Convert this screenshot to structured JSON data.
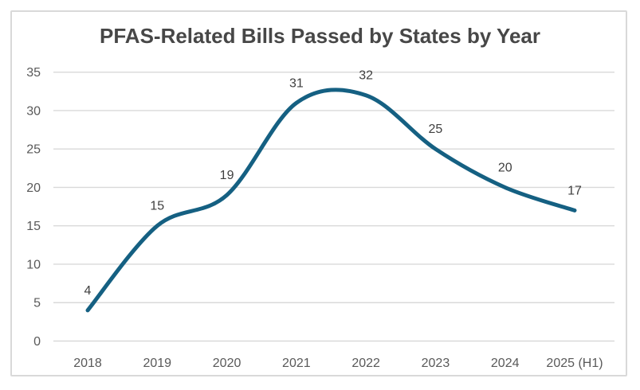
{
  "chart_data": {
    "type": "line",
    "title": "PFAS-Related Bills Passed by States by Year",
    "categories": [
      "2018",
      "2019",
      "2020",
      "2021",
      "2022",
      "2023",
      "2024",
      "2025 (H1)"
    ],
    "values": [
      4,
      15,
      19,
      31,
      32,
      25,
      20,
      17
    ],
    "xlabel": "",
    "ylabel": "",
    "ylim": [
      0,
      35
    ],
    "yticks": [
      0,
      5,
      10,
      15,
      20,
      25,
      30,
      35
    ],
    "grid": true,
    "legend": "none",
    "smoothed_line": true,
    "point_markers": false,
    "data_labels_shown": true,
    "colors": {
      "line": "#156082",
      "gridline": "#d9d9d9",
      "axis_text": "#595959",
      "data_label_text": "#3f3f3f",
      "title_text": "#474747",
      "card_border": "#d9d9d9",
      "background": "#ffffff"
    }
  }
}
